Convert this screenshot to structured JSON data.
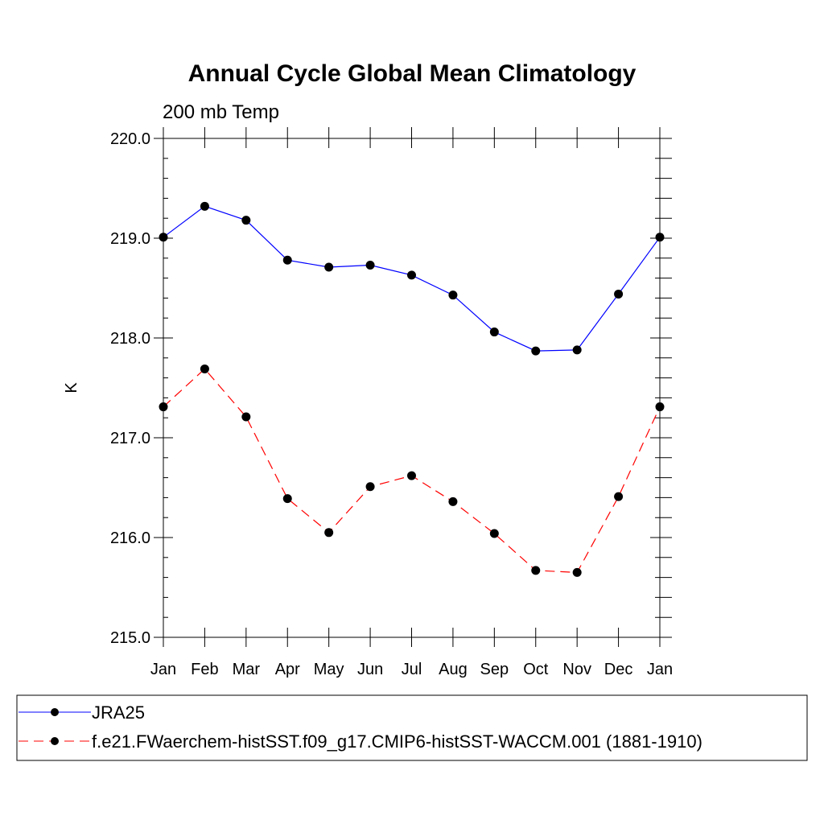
{
  "chart_data": {
    "type": "line",
    "title": "Annual Cycle Global Mean Climatology",
    "subtitle": "200 mb Temp",
    "xlabel": "",
    "ylabel": "K",
    "categories": [
      "Jan",
      "Feb",
      "Mar",
      "Apr",
      "May",
      "Jun",
      "Jul",
      "Aug",
      "Sep",
      "Oct",
      "Nov",
      "Dec",
      "Jan"
    ],
    "ylim": [
      215.0,
      220.0
    ],
    "yticks": [
      "215.0",
      "216.0",
      "217.0",
      "218.0",
      "219.0",
      "220.0"
    ],
    "y_minor_step": 0.2,
    "grid": false,
    "legend_position": "bottom",
    "series": [
      {
        "name": "JRA25",
        "values": [
          219.01,
          219.32,
          219.18,
          218.78,
          218.71,
          218.73,
          218.63,
          218.43,
          218.06,
          217.87,
          217.88,
          218.44,
          219.01
        ],
        "color": "#0000ff",
        "dash": "solid",
        "marker": "circle"
      },
      {
        "name": "f.e21.FWaerchem-histSST.f09_g17.CMIP6-histSST-WACCM.001 (1881-1910)",
        "values": [
          217.31,
          217.69,
          217.21,
          216.39,
          216.05,
          216.51,
          216.62,
          216.36,
          216.04,
          215.67,
          215.65,
          216.41,
          217.31
        ],
        "color": "#ff0000",
        "dash": "dashed",
        "marker": "circle"
      }
    ]
  }
}
